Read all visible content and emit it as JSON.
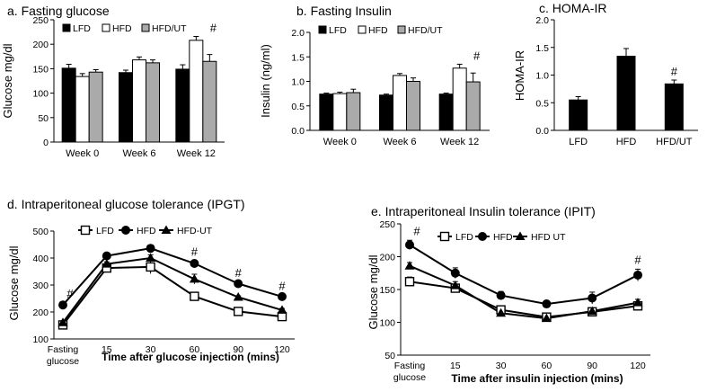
{
  "chart_data": [
    {
      "type": "bar",
      "title": "a. Fasting glucose",
      "ylabel": "Glucose mg/dl",
      "xlabel": "",
      "ylim": [
        0,
        250
      ],
      "yticks": [
        "0",
        "50",
        "100",
        "150",
        "200",
        "250"
      ],
      "categories": [
        "Week 0",
        "Week 6",
        "Week 12"
      ],
      "series": [
        {
          "name": "LFD",
          "color": "#000000",
          "values": [
            151,
            142,
            149
          ],
          "errors": [
            8,
            5,
            9
          ]
        },
        {
          "name": "HFD",
          "color": "#ffffff",
          "values": [
            134,
            168,
            208
          ],
          "errors": [
            6,
            6,
            8
          ]
        },
        {
          "name": "HFD/UT",
          "color": "#aaaaaa",
          "values": [
            143,
            162,
            165
          ],
          "errors": [
            5,
            6,
            14
          ]
        }
      ],
      "annotations": [
        {
          "category": 2,
          "text": "#"
        }
      ]
    },
    {
      "type": "bar",
      "title": "b. Fasting Insulin",
      "ylabel": "Insulin (ng/ml)",
      "xlabel": "",
      "ylim": [
        0,
        2.0
      ],
      "yticks": [
        "0.0",
        "0.5",
        "1.0",
        "1.5",
        "2.0"
      ],
      "categories": [
        "Week 0",
        "Week 6",
        "Week 12"
      ],
      "series": [
        {
          "name": "LFD",
          "color": "#000000",
          "values": [
            0.74,
            0.72,
            0.74
          ],
          "errors": [
            0.02,
            0.02,
            0.02
          ]
        },
        {
          "name": "HFD",
          "color": "#ffffff",
          "values": [
            0.75,
            1.12,
            1.27
          ],
          "errors": [
            0.03,
            0.04,
            0.08
          ]
        },
        {
          "name": "HFD/UT",
          "color": "#aaaaaa",
          "values": [
            0.77,
            1.0,
            0.99
          ],
          "errors": [
            0.07,
            0.07,
            0.18
          ]
        }
      ],
      "annotations": [
        {
          "category": 2,
          "text": "#"
        }
      ]
    },
    {
      "type": "bar",
      "title": "c. HOMA-IR",
      "ylabel": "HOMA-IR",
      "xlabel": "",
      "ylim": [
        0,
        2.0
      ],
      "yticks": [
        "0.0",
        "0.5",
        "1.0",
        "1.5",
        "2.0"
      ],
      "categories": [
        "LFD",
        "HFD",
        "HFD/UT"
      ],
      "series": [
        {
          "name": "HOMA-IR",
          "color": "#000000",
          "values": [
            0.55,
            1.34,
            0.84
          ],
          "errors": [
            0.06,
            0.14,
            0.07
          ]
        }
      ],
      "annotations": [
        {
          "category": 2,
          "text": "#"
        }
      ]
    },
    {
      "type": "line",
      "title": "d. Intraperitoneal glucose tolerance (IPGT)",
      "ylabel": "Glucose mg/dl",
      "xlabel": "Time after glucose injection (mins)",
      "ylim": [
        100,
        500
      ],
      "yticks": [
        "100",
        "200",
        "300",
        "400",
        "500"
      ],
      "x": [
        "Fasting glucose",
        "15",
        "30",
        "60",
        "90",
        "120"
      ],
      "series": [
        {
          "name": "LFD",
          "marker": "square",
          "values": [
            152,
            363,
            367,
            258,
            202,
            183
          ],
          "errors": [
            5,
            12,
            25,
            15,
            5,
            6
          ]
        },
        {
          "name": "HFD",
          "marker": "circle",
          "values": [
            226,
            408,
            436,
            380,
            305,
            257
          ],
          "errors": [
            7,
            5,
            12,
            8,
            5,
            5
          ]
        },
        {
          "name": "HFD-UT",
          "marker": "triangle",
          "values": [
            161,
            378,
            400,
            322,
            255,
            207
          ],
          "errors": [
            5,
            8,
            12,
            18,
            5,
            6
          ]
        }
      ],
      "annotations": [
        {
          "index": 0,
          "text": "#"
        },
        {
          "index": 3,
          "text": "#"
        },
        {
          "index": 4,
          "text": "#"
        },
        {
          "index": 5,
          "text": "#"
        }
      ]
    },
    {
      "type": "line",
      "title": "e. Intraperitoneal Insulin tolerance (IPIT)",
      "ylabel": "Glucose mg/dl",
      "xlabel": "Time after insulin injection (mins)",
      "ylim": [
        50,
        250
      ],
      "yticks": [
        "50",
        "100",
        "150",
        "200",
        "250"
      ],
      "x": [
        "Fasting glucose",
        "15",
        "30",
        "60",
        "90",
        "120"
      ],
      "series": [
        {
          "name": "LFD",
          "marker": "square",
          "values": [
            162,
            152,
            119,
            108,
            116,
            125
          ],
          "errors": [
            7,
            6,
            5,
            6,
            5,
            6
          ]
        },
        {
          "name": "HFD",
          "marker": "circle",
          "values": [
            218,
            175,
            141,
            128,
            137,
            172
          ],
          "errors": [
            7,
            8,
            6,
            5,
            9,
            9
          ]
        },
        {
          "name": "HFD UT",
          "marker": "triangle",
          "values": [
            186,
            156,
            114,
            106,
            117,
            130
          ],
          "errors": [
            5,
            6,
            5,
            5,
            5,
            5
          ]
        }
      ],
      "annotations": [
        {
          "index": 0,
          "text": "#"
        },
        {
          "index": 5,
          "text": "#"
        }
      ]
    }
  ]
}
